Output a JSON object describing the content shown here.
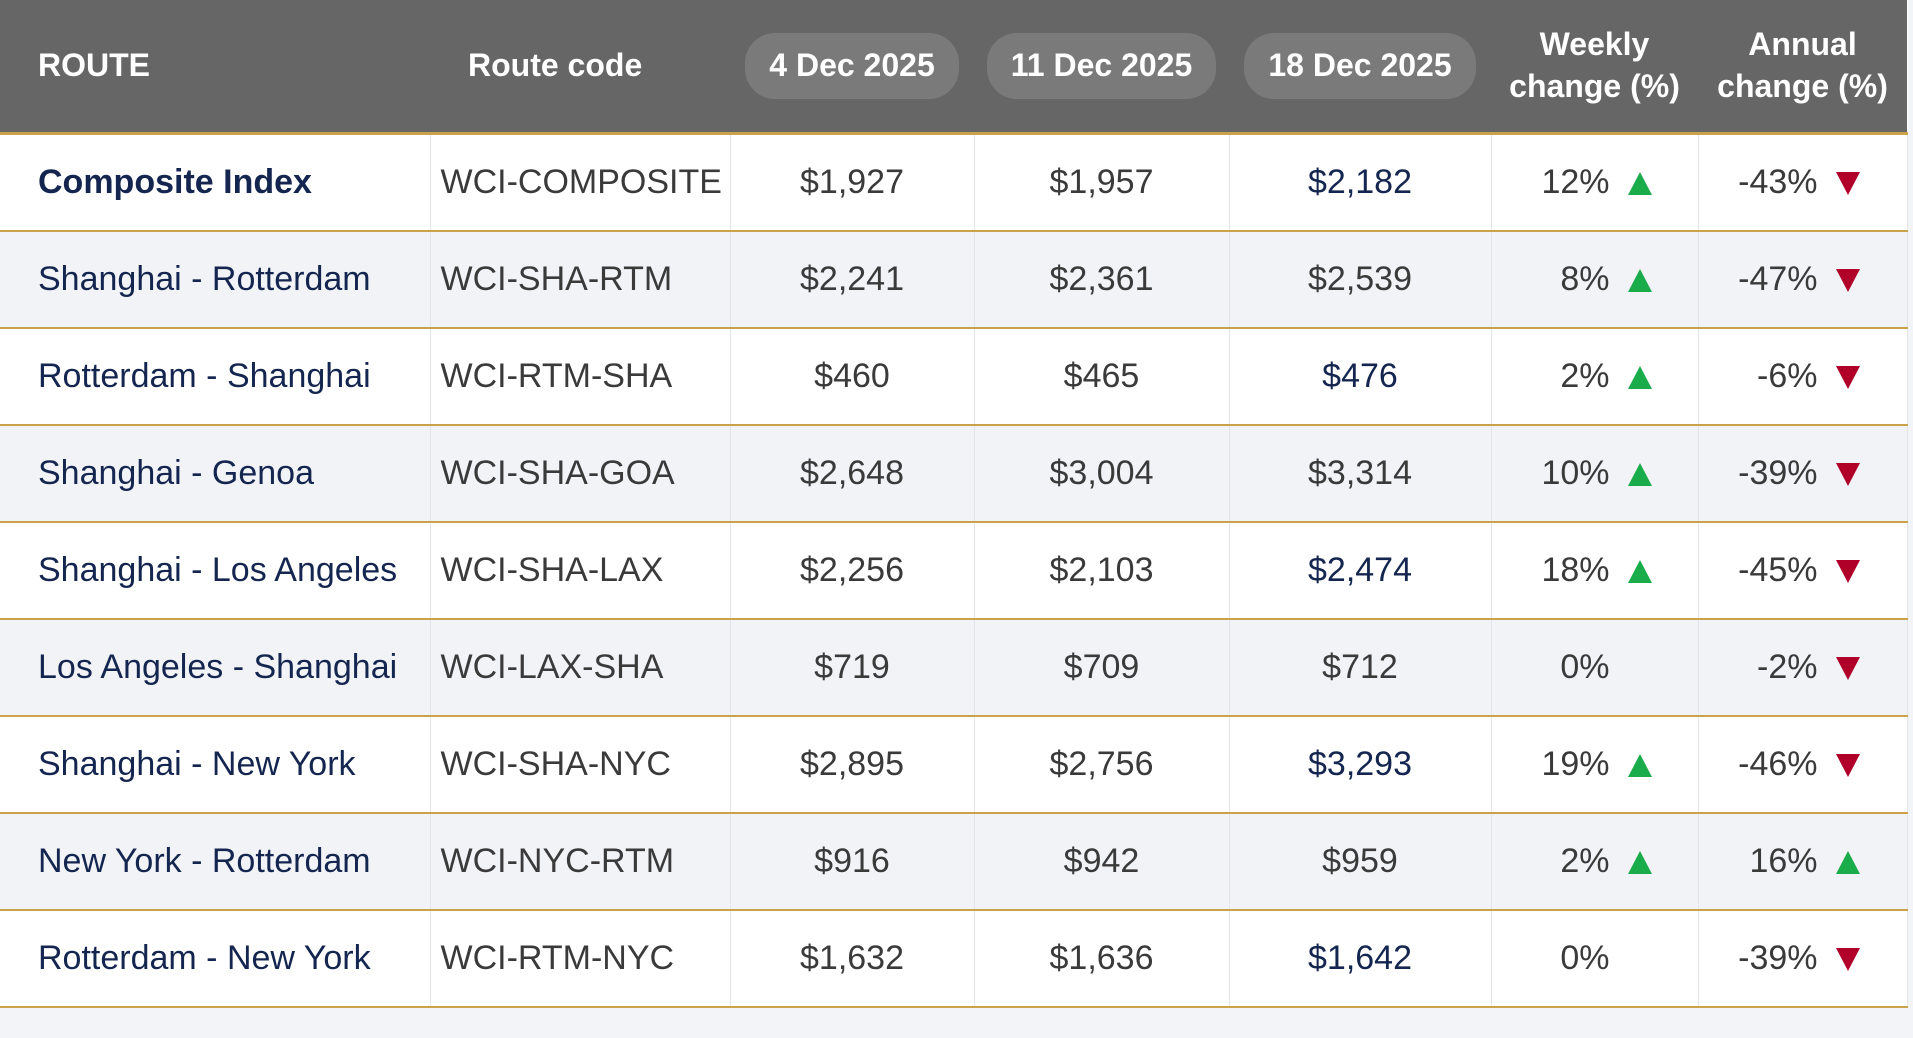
{
  "header": {
    "columns": [
      "ROUTE",
      "Route code",
      "4 Dec 2025",
      "11 Dec 2025",
      "18 Dec 2025",
      "Weekly change (%)",
      "Annual change (%)"
    ]
  },
  "table": {
    "rows": [
      [
        "Composite Index",
        "WCI-COMPOSITE",
        "$1,927",
        "$1,957",
        "$2,182",
        "12%",
        "-43%"
      ],
      [
        "Shanghai - Rotterdam",
        "WCI-SHA-RTM",
        "$2,241",
        "$2,361",
        "$2,539",
        "8%",
        "-47%"
      ],
      [
        "Rotterdam - Shanghai",
        "WCI-RTM-SHA",
        "$460",
        "$465",
        "$476",
        "2%",
        "-6%"
      ],
      [
        "Shanghai - Genoa",
        "WCI-SHA-GOA",
        "$2,648",
        "$3,004",
        "$3,314",
        "10%",
        "-39%"
      ],
      [
        "Shanghai - Los Angeles",
        "WCI-SHA-LAX",
        "$2,256",
        "$2,103",
        "$2,474",
        "18%",
        "-45%"
      ],
      [
        "Los Angeles - Shanghai",
        "WCI-LAX-SHA",
        "$719",
        "$709",
        "$712",
        "0%",
        "-2%"
      ],
      [
        "Shanghai - New York",
        "WCI-SHA-NYC",
        "$2,895",
        "$2,756",
        "$3,293",
        "19%",
        "-46%"
      ],
      [
        "New York - Rotterdam",
        "WCI-NYC-RTM",
        "$916",
        "$942",
        "$959",
        "2%",
        "16%"
      ],
      [
        "Rotterdam - New York",
        "WCI-RTM-NYC",
        "$1,632",
        "$1,636",
        "$1,642",
        "0%",
        "-39%"
      ]
    ]
  }
}
